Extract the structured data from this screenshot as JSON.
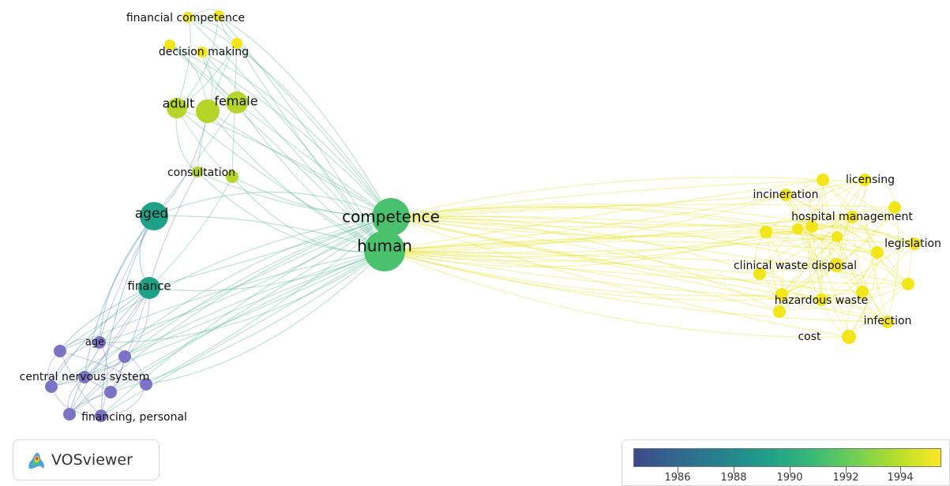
{
  "app": {
    "name": "VOSviewer"
  },
  "colors": {
    "purple": "#7b74c4",
    "teal": "#1fa187",
    "green": "#4ac16d",
    "yellowgreen": "#b5d52a",
    "yellow": "#f2e61a"
  },
  "nodes": [
    {
      "id": "financial-competence",
      "label": "financial competence",
      "color": "yellow"
    },
    {
      "id": "decision-making",
      "label": "decision making",
      "color": "yellow"
    },
    {
      "id": "adult",
      "label": "adult",
      "color": "yellowgreen"
    },
    {
      "id": "female",
      "label": "female",
      "color": "yellowgreen"
    },
    {
      "id": "consultation",
      "label": "consultation",
      "color": "yellowgreen"
    },
    {
      "id": "aged",
      "label": "aged",
      "color": "teal"
    },
    {
      "id": "competence",
      "label": "competence",
      "color": "green"
    },
    {
      "id": "human",
      "label": "human",
      "color": "green"
    },
    {
      "id": "finance",
      "label": "finance",
      "color": "teal"
    },
    {
      "id": "age",
      "label": "age",
      "color": "purple"
    },
    {
      "id": "central-nervous-system",
      "label": "central nervous system",
      "color": "purple"
    },
    {
      "id": "financing-personal",
      "label": "financing, personal",
      "color": "purple"
    },
    {
      "id": "licensing",
      "label": "licensing",
      "color": "yellow"
    },
    {
      "id": "incineration",
      "label": "incineration",
      "color": "yellow"
    },
    {
      "id": "hospital-management",
      "label": "hospital management",
      "color": "yellow"
    },
    {
      "id": "legislation",
      "label": "legislation",
      "color": "yellow"
    },
    {
      "id": "clinical-waste-disposal",
      "label": "clinical waste disposal",
      "color": "yellow"
    },
    {
      "id": "hazardous-waste",
      "label": "hazardous waste",
      "color": "yellow"
    },
    {
      "id": "infection",
      "label": "infection",
      "color": "yellow"
    },
    {
      "id": "cost",
      "label": "cost",
      "color": "yellow"
    }
  ],
  "color_scale": {
    "ticks": [
      "1986",
      "1988",
      "1990",
      "1992",
      "1994"
    ],
    "gradient": [
      "#3e4a89",
      "#31688e",
      "#26828e",
      "#1f9e89",
      "#35b779",
      "#6ece58",
      "#b5de2b",
      "#fde725"
    ]
  }
}
